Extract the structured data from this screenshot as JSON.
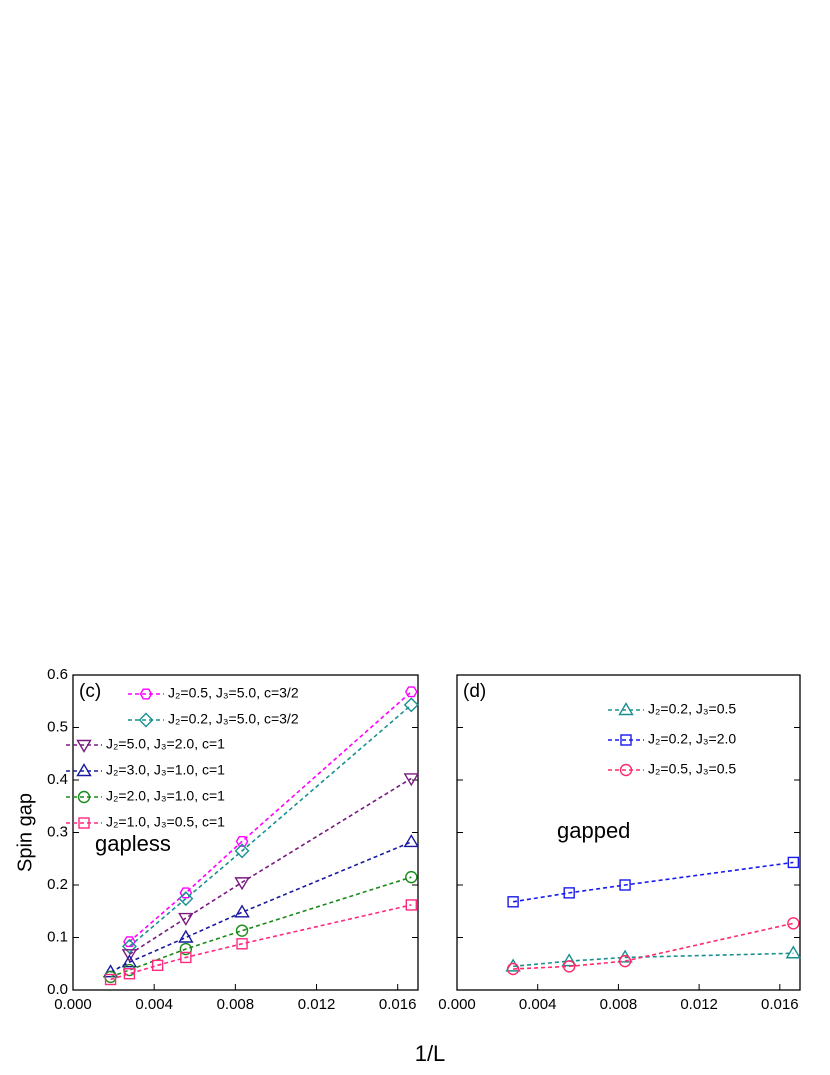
{
  "chart_data": [
    {
      "type": "line",
      "panel_label": "(c)",
      "annotation": "gapless",
      "xlabel": "1/L",
      "ylabel": "Spin gap",
      "xlim": [
        0,
        0.017
      ],
      "ylim": [
        0,
        0.6
      ],
      "xticks": [
        {
          "value": 0,
          "label": "0.000"
        },
        {
          "value": 0.004,
          "label": "0.004"
        },
        {
          "value": 0.008,
          "label": "0.008"
        },
        {
          "value": 0.012,
          "label": "0.012"
        },
        {
          "value": 0.016,
          "label": "0.016"
        }
      ],
      "yticks": [
        {
          "value": 0,
          "label": "0.0"
        },
        0.1,
        0.2,
        0.3,
        0.4,
        0.5,
        0.6
      ],
      "series": [
        {
          "name": "J₂=0.5, J₃=5.0, c=3/2",
          "color": "#ff00ff",
          "marker": "hexagon",
          "x": [
            0.00278,
            0.00556,
            0.00833,
            0.01667
          ],
          "values": [
            0.092,
            0.185,
            0.283,
            0.568
          ]
        },
        {
          "name": "J₂=0.2, J₃=5.0, c=3/2",
          "color": "#1a9090",
          "marker": "diamond",
          "x": [
            0.00278,
            0.00556,
            0.00833,
            0.01667
          ],
          "values": [
            0.083,
            0.174,
            0.265,
            0.543
          ]
        },
        {
          "name": "J₂=5.0, J₃=2.0, c=1",
          "color": "#7a1a80",
          "marker": "down",
          "x": [
            0.00278,
            0.00556,
            0.00833,
            0.01667
          ],
          "values": [
            0.068,
            0.137,
            0.205,
            0.403
          ]
        },
        {
          "name": "J₂=3.0, J₃=1.0, c=1",
          "color": "#1a1aa0",
          "marker": "up",
          "x": [
            0.00185,
            0.00278,
            0.00556,
            0.00833,
            0.01667
          ],
          "values": [
            0.034,
            0.053,
            0.1,
            0.148,
            0.282
          ]
        },
        {
          "name": "J₂=2.0, J₃=1.0, c=1",
          "color": "#1a8a1a",
          "marker": "circle",
          "x": [
            0.00185,
            0.00278,
            0.00556,
            0.00833,
            0.01667
          ],
          "values": [
            0.025,
            0.038,
            0.078,
            0.113,
            0.215
          ]
        },
        {
          "name": "J₂=1.0, J₃=0.5, c=1",
          "color": "#ff2a80",
          "marker": "square",
          "x": [
            0.00185,
            0.00278,
            0.00417,
            0.00556,
            0.00833,
            0.01667
          ],
          "values": [
            0.02,
            0.031,
            0.047,
            0.062,
            0.088,
            0.162
          ]
        }
      ]
    },
    {
      "type": "line",
      "panel_label": "(d)",
      "annotation": "gapped",
      "xlim": [
        0,
        0.017
      ],
      "ylim": [
        0,
        0.6
      ],
      "xticks": [
        {
          "value": 0,
          "label": "0.000"
        },
        {
          "value": 0.004,
          "label": "0.004"
        },
        {
          "value": 0.008,
          "label": "0.008"
        },
        {
          "value": 0.012,
          "label": "0.012"
        },
        {
          "value": 0.016,
          "label": "0.016"
        }
      ],
      "yticks": [
        0,
        0.1,
        0.2,
        0.3,
        0.4,
        0.5,
        0.6
      ],
      "series": [
        {
          "name": "J₂=0.2, J₃=0.5",
          "color": "#1a9090",
          "marker": "up",
          "x": [
            0.00278,
            0.00556,
            0.00833,
            0.01667
          ],
          "values": [
            0.045,
            0.055,
            0.062,
            0.07
          ]
        },
        {
          "name": "J₂=0.2, J₃=2.0",
          "color": "#1a1aee",
          "marker": "square",
          "x": [
            0.00278,
            0.00556,
            0.00833,
            0.01667
          ],
          "values": [
            0.168,
            0.185,
            0.2,
            0.243
          ]
        },
        {
          "name": "J₂=0.5, J₃=0.5",
          "color": "#ff2a6a",
          "marker": "circle",
          "x": [
            0.00278,
            0.00556,
            0.00833,
            0.01667
          ],
          "values": [
            0.04,
            0.045,
            0.055,
            0.127
          ]
        }
      ]
    }
  ]
}
